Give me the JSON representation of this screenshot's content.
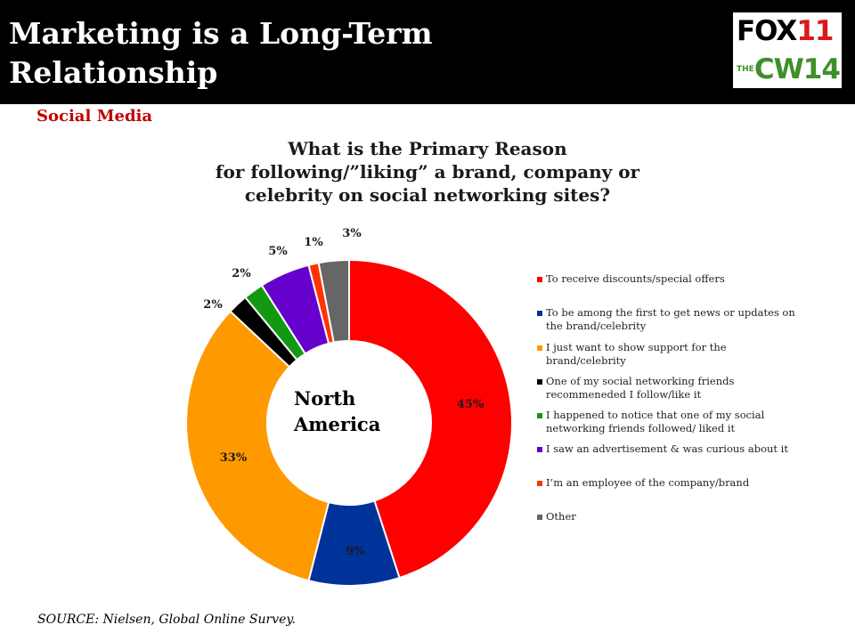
{
  "slide": {
    "title_line1": "Marketing is a Long-Term",
    "title_line2": "Relationship",
    "section": "Social Media",
    "source": "SOURCE: Nielsen, Global Online Survey.",
    "header_color": "#000000",
    "section_color": "#c00000"
  },
  "logos": {
    "fox_text": "FOX",
    "fox_number": "11",
    "cw_prefix": "THE",
    "cw_text": "CW",
    "cw_number": "14"
  },
  "chart_data": {
    "type": "pie",
    "style": "doughnut",
    "title_line1": "What is the Primary Reason",
    "title_line2": "for following/”liking” a brand, company or",
    "title_line3": "celebrity on social networking sites?",
    "center_label_line1": "North",
    "center_label_line2": "America",
    "legend_position": "right",
    "value_suffix": "%",
    "slices": [
      {
        "label": "To receive discounts/special offers",
        "value": 45,
        "color": "#ff0000"
      },
      {
        "label": "To be among the first to get news or updates on the brand/celebrity",
        "value": 9,
        "color": "#003399"
      },
      {
        "label": "I just want to show support for the brand/celebrity",
        "value": 33,
        "color": "#ff9900"
      },
      {
        "label": "One of my social networking friends recommeneded I follow/like it",
        "value": 2,
        "color": "#000000"
      },
      {
        "label": "I happened to notice that one of my social networking friends followed/ liked it",
        "value": 2,
        "color": "#119911"
      },
      {
        "label": "I saw an advertisement & was curious about it",
        "value": 5,
        "color": "#6600cc"
      },
      {
        "label": "I’m an employee of the company/brand",
        "value": 1,
        "color": "#ff3300"
      },
      {
        "label": "Other",
        "value": 3,
        "color": "#666666"
      }
    ]
  }
}
